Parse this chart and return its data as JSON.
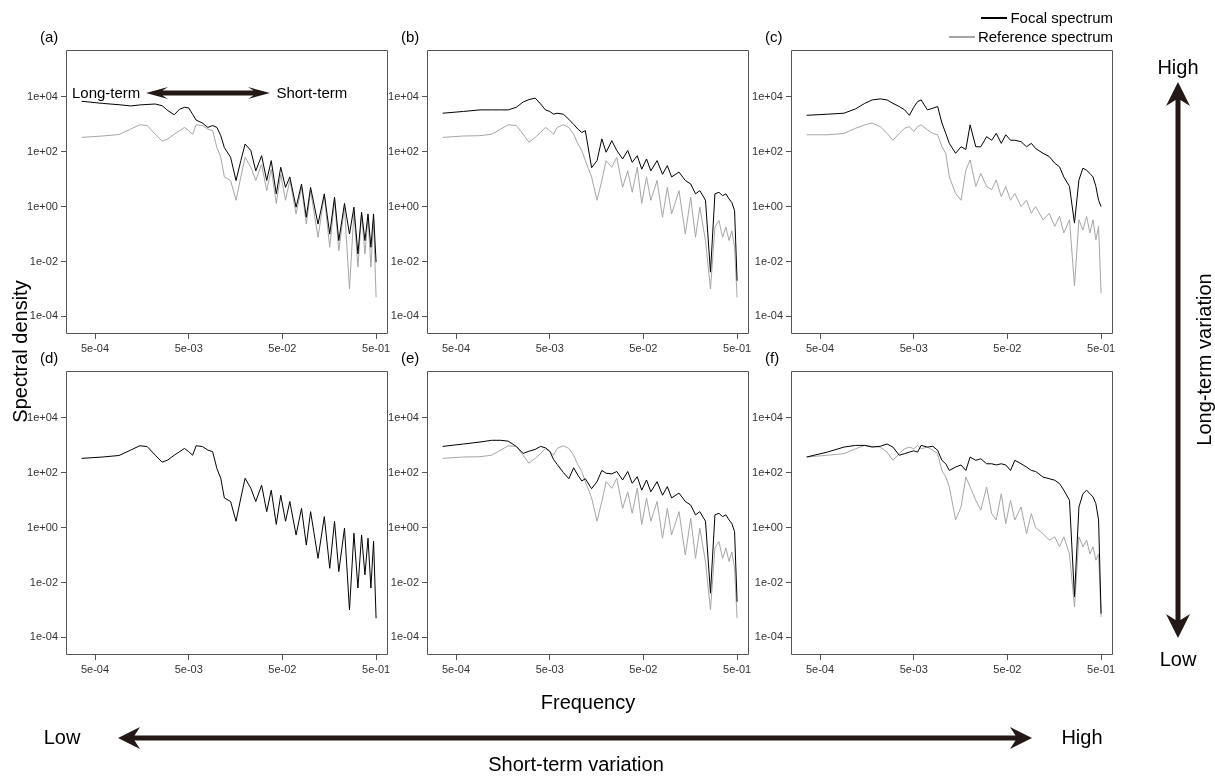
{
  "chart_data": [
    {
      "type": "line",
      "title": "(a)",
      "ylabel": "Spectral density",
      "annotations": [
        "Long-term",
        "Short-term"
      ],
      "log": "xy",
      "xlim": [
        0.000245,
        0.67
      ],
      "ylim": [
        2.3e-05,
        500000
      ],
      "xticks": [
        {
          "value": 0.0005,
          "label": "5e-04"
        },
        {
          "value": 0.005,
          "label": "5e-03"
        },
        {
          "value": 0.05,
          "label": "5e-02"
        },
        {
          "value": 0.5,
          "label": "5e-01"
        }
      ],
      "yticks": [
        {
          "value": 0.0001,
          "label": "1e-04"
        },
        {
          "value": 0.01,
          "label": "1e-02"
        },
        {
          "value": 1,
          "label": "1e+00"
        },
        {
          "value": 100,
          "label": "1e+02"
        },
        {
          "value": 10000,
          "label": "1e+04"
        }
      ],
      "x": [
        0.00036,
        0.0006,
        0.0009,
        0.0012,
        0.0015,
        0.0018,
        0.0022,
        0.0026,
        0.003,
        0.0035,
        0.004,
        0.0045,
        0.005,
        0.0055,
        0.006,
        0.007,
        0.008,
        0.009,
        0.01,
        0.011,
        0.012,
        0.014,
        0.016,
        0.018,
        0.02,
        0.023,
        0.026,
        0.03,
        0.034,
        0.038,
        0.043,
        0.048,
        0.054,
        0.06,
        0.07,
        0.08,
        0.09,
        0.1,
        0.12,
        0.14,
        0.16,
        0.18,
        0.2,
        0.23,
        0.26,
        0.29,
        0.32,
        0.35,
        0.38,
        0.41,
        0.44,
        0.47,
        0.5
      ],
      "series": [
        {
          "color": "#000000",
          "values": [
            6800,
            5700,
            5100,
            4600,
            5000,
            5200,
            5400,
            4700,
            3100,
            2200,
            3500,
            4100,
            3900,
            2300,
            1400,
            1100,
            760,
            890,
            760,
            380,
            140,
            62,
            8.9,
            47,
            190,
            110,
            20,
            71,
            8.9,
            47,
            2.9,
            27,
            5.0,
            12,
            0.95,
            6.6,
            0.41,
            5.0,
            0.23,
            2.9,
            0.1,
            2.2,
            0.058,
            1.3,
            0.1,
            0.95,
            0.019,
            0.62,
            0.058,
            0.54,
            0.033,
            0.54,
            0.0095
          ]
        },
        {
          "color": "#a6a6a6",
          "values": [
            330,
            370,
            420,
            660,
            950,
            890,
            430,
            240,
            290,
            430,
            580,
            760,
            580,
            430,
            950,
            890,
            660,
            580,
            140,
            62,
            12,
            8.9,
            1.7,
            12,
            62,
            27,
            8.9,
            35,
            3.8,
            23,
            1.3,
            15,
            1.7,
            8.9,
            0.54,
            5.0,
            0.23,
            3.8,
            0.076,
            2.5,
            0.033,
            1.7,
            0.025,
            0.95,
            0.001,
            0.62,
            0.0063,
            0.54,
            0.019,
            0.41,
            0.0063,
            0.32,
            0.0005
          ]
        }
      ]
    },
    {
      "type": "line",
      "title": "(b)",
      "log": "xy",
      "xlim": [
        0.000245,
        0.67
      ],
      "ylim": [
        2.3e-05,
        500000
      ],
      "xticks": [
        {
          "value": 0.0005,
          "label": "5e-04"
        },
        {
          "value": 0.005,
          "label": "5e-03"
        },
        {
          "value": 0.05,
          "label": "5e-02"
        },
        {
          "value": 0.5,
          "label": "5e-01"
        }
      ],
      "yticks": [
        {
          "value": 0.0001,
          "label": "1e-04"
        },
        {
          "value": 0.01,
          "label": "1e-02"
        },
        {
          "value": 1,
          "label": "1e+00"
        },
        {
          "value": 100,
          "label": "1e+02"
        },
        {
          "value": 10000,
          "label": "1e+04"
        }
      ],
      "x": [
        0.00036,
        0.0006,
        0.0009,
        0.0012,
        0.0015,
        0.0018,
        0.0022,
        0.0026,
        0.003,
        0.0035,
        0.004,
        0.0045,
        0.005,
        0.0055,
        0.006,
        0.007,
        0.008,
        0.009,
        0.01,
        0.011,
        0.012,
        0.014,
        0.016,
        0.018,
        0.02,
        0.023,
        0.026,
        0.03,
        0.034,
        0.038,
        0.043,
        0.048,
        0.054,
        0.06,
        0.07,
        0.08,
        0.09,
        0.1,
        0.12,
        0.14,
        0.16,
        0.18,
        0.2,
        0.23,
        0.26,
        0.29,
        0.32,
        0.35,
        0.38,
        0.41,
        0.44,
        0.47,
        0.5
      ],
      "series": [
        {
          "color": "#000000",
          "values": [
            2500,
            2900,
            3300,
            3300,
            3300,
            3300,
            4100,
            6400,
            7800,
            8900,
            5400,
            3300,
            2900,
            2300,
            2500,
            2300,
            1500,
            980,
            660,
            500,
            580,
            26,
            47,
            290,
            95,
            250,
            110,
            54,
            110,
            41,
            71,
            23,
            54,
            20,
            47,
            15,
            31,
            12,
            18,
            8.9,
            6.6,
            2.9,
            3.8,
            1.7,
            0.0041,
            2.9,
            3.3,
            2.5,
            2.9,
            1.9,
            1.4,
            0.71,
            0.002
          ]
        },
        {
          "color": "#a6a6a6",
          "values": [
            330,
            370,
            380,
            430,
            660,
            950,
            890,
            430,
            220,
            330,
            500,
            760,
            580,
            430,
            760,
            950,
            760,
            430,
            190,
            110,
            47,
            12,
            1.7,
            8.9,
            47,
            27,
            62,
            5.0,
            20,
            3.3,
            27,
            1.3,
            12,
            1.7,
            8.9,
            0.41,
            5.0,
            0.54,
            3.8,
            0.1,
            2.2,
            0.076,
            0.95,
            0.058,
            0.001,
            0.18,
            0.31,
            0.076,
            0.18,
            0.058,
            0.13,
            0.033,
            0.0005
          ]
        }
      ]
    },
    {
      "type": "line",
      "title": "(c)",
      "legend": "top right",
      "log": "xy",
      "xlim": [
        0.000245,
        0.67
      ],
      "ylim": [
        2.3e-05,
        500000
      ],
      "xticks": [
        {
          "value": 0.0005,
          "label": "5e-04"
        },
        {
          "value": 0.005,
          "label": "5e-03"
        },
        {
          "value": 0.05,
          "label": "5e-02"
        },
        {
          "value": 0.5,
          "label": "5e-01"
        }
      ],
      "yticks": [
        {
          "value": 0.0001,
          "label": "1e-04"
        },
        {
          "value": 0.01,
          "label": "1e-02"
        },
        {
          "value": 1,
          "label": "1e+00"
        },
        {
          "value": 100,
          "label": "1e+02"
        },
        {
          "value": 10000,
          "label": "1e+04"
        }
      ],
      "x": [
        0.00036,
        0.0006,
        0.0009,
        0.0012,
        0.0015,
        0.0018,
        0.0022,
        0.0026,
        0.003,
        0.0035,
        0.004,
        0.0045,
        0.005,
        0.0055,
        0.006,
        0.007,
        0.008,
        0.009,
        0.01,
        0.011,
        0.012,
        0.014,
        0.016,
        0.018,
        0.02,
        0.023,
        0.026,
        0.03,
        0.034,
        0.038,
        0.043,
        0.048,
        0.054,
        0.06,
        0.07,
        0.08,
        0.09,
        0.1,
        0.12,
        0.14,
        0.16,
        0.18,
        0.2,
        0.23,
        0.26,
        0.29,
        0.32,
        0.35,
        0.38,
        0.41,
        0.44,
        0.47,
        0.5
      ],
      "series": [
        {
          "name": "Focal spectrum",
          "color": "#000000",
          "values": [
            2100,
            2300,
            2500,
            3600,
            5700,
            7600,
            8300,
            7600,
            5700,
            4400,
            3300,
            2100,
            4100,
            6600,
            7600,
            3300,
            3800,
            4400,
            1100,
            460,
            200,
            87,
            150,
            120,
            940,
            150,
            150,
            350,
            260,
            460,
            200,
            410,
            260,
            260,
            230,
            150,
            200,
            130,
            87,
            66,
            38,
            28,
            12,
            5.4,
            0.25,
            9.3,
            25,
            21,
            16,
            12,
            5.4,
            1.7,
            1.0
          ]
        },
        {
          "name": "Reference spectrum",
          "color": "#a6a6a6",
          "values": [
            410,
            410,
            460,
            710,
            940,
            1100,
            810,
            460,
            260,
            460,
            710,
            810,
            540,
            810,
            940,
            620,
            460,
            410,
            150,
            87,
            12,
            3.0,
            1.7,
            21,
            50,
            5.4,
            16,
            5.4,
            4.1,
            9.3,
            2.3,
            5.4,
            1.7,
            3.0,
            1.0,
            1.7,
            0.57,
            1.0,
            0.33,
            0.57,
            0.19,
            0.44,
            0.11,
            0.33,
            0.0013,
            0.33,
            0.14,
            0.44,
            0.11,
            0.33,
            0.062,
            0.19,
            0.0007
          ]
        }
      ]
    },
    {
      "type": "line",
      "title": "(d)",
      "log": "xy",
      "xlim": [
        0.000245,
        0.67
      ],
      "ylim": [
        2.3e-05,
        500000
      ],
      "xticks": [
        {
          "value": 0.0005,
          "label": "5e-04"
        },
        {
          "value": 0.005,
          "label": "5e-03"
        },
        {
          "value": 0.05,
          "label": "5e-02"
        },
        {
          "value": 0.5,
          "label": "5e-01"
        }
      ],
      "yticks": [
        {
          "value": 0.0001,
          "label": "1e-04"
        },
        {
          "value": 0.01,
          "label": "1e-02"
        },
        {
          "value": 1,
          "label": "1e+00"
        },
        {
          "value": 100,
          "label": "1e+02"
        },
        {
          "value": 10000,
          "label": "1e+04"
        }
      ],
      "x": [
        0.00036,
        0.0006,
        0.0009,
        0.0012,
        0.0015,
        0.0018,
        0.0022,
        0.0026,
        0.003,
        0.0035,
        0.004,
        0.0045,
        0.005,
        0.0055,
        0.006,
        0.007,
        0.008,
        0.009,
        0.01,
        0.011,
        0.012,
        0.014,
        0.016,
        0.018,
        0.02,
        0.023,
        0.026,
        0.03,
        0.034,
        0.038,
        0.043,
        0.048,
        0.054,
        0.06,
        0.07,
        0.08,
        0.09,
        0.1,
        0.12,
        0.14,
        0.16,
        0.18,
        0.2,
        0.23,
        0.26,
        0.29,
        0.32,
        0.35,
        0.38,
        0.41,
        0.44,
        0.47,
        0.5
      ],
      "series": [
        {
          "color": "#000000",
          "values": [
            330,
            370,
            420,
            660,
            950,
            890,
            430,
            240,
            290,
            430,
            580,
            760,
            580,
            430,
            950,
            890,
            660,
            580,
            140,
            62,
            12,
            8.9,
            1.7,
            12,
            62,
            27,
            8.9,
            35,
            3.8,
            23,
            1.3,
            15,
            1.7,
            8.9,
            0.54,
            5.0,
            0.23,
            3.8,
            0.076,
            2.5,
            0.033,
            1.7,
            0.025,
            0.95,
            0.001,
            0.62,
            0.0063,
            0.54,
            0.019,
            0.41,
            0.0063,
            0.32,
            0.0005
          ]
        }
      ]
    },
    {
      "type": "line",
      "title": "(e)",
      "xlabel": "Frequency",
      "log": "xy",
      "xlim": [
        0.000245,
        0.67
      ],
      "ylim": [
        2.3e-05,
        500000
      ],
      "xticks": [
        {
          "value": 0.0005,
          "label": "5e-04"
        },
        {
          "value": 0.005,
          "label": "5e-03"
        },
        {
          "value": 0.05,
          "label": "5e-02"
        },
        {
          "value": 0.5,
          "label": "5e-01"
        }
      ],
      "yticks": [
        {
          "value": 0.0001,
          "label": "1e-04"
        },
        {
          "value": 0.01,
          "label": "1e-02"
        },
        {
          "value": 1,
          "label": "1e+00"
        },
        {
          "value": 100,
          "label": "1e+02"
        },
        {
          "value": 10000,
          "label": "1e+04"
        }
      ],
      "x": [
        0.00036,
        0.0006,
        0.0009,
        0.0012,
        0.0015,
        0.0018,
        0.0022,
        0.0026,
        0.003,
        0.0035,
        0.004,
        0.0045,
        0.005,
        0.0055,
        0.006,
        0.007,
        0.008,
        0.009,
        0.01,
        0.011,
        0.012,
        0.014,
        0.016,
        0.018,
        0.02,
        0.023,
        0.026,
        0.03,
        0.034,
        0.038,
        0.043,
        0.048,
        0.054,
        0.06,
        0.07,
        0.08,
        0.09,
        0.1,
        0.12,
        0.14,
        0.16,
        0.18,
        0.2,
        0.23,
        0.26,
        0.29,
        0.32,
        0.35,
        0.38,
        0.41,
        0.44,
        0.47,
        0.5
      ],
      "series": [
        {
          "color": "#000000",
          "values": [
            900,
            1100,
            1300,
            1500,
            1500,
            1400,
            900,
            500,
            600,
            700,
            900,
            800,
            600,
            300,
            200,
            100,
            60,
            150,
            80,
            50,
            60,
            26,
            47,
            120,
            95,
            90,
            110,
            54,
            110,
            41,
            71,
            23,
            54,
            20,
            47,
            15,
            31,
            12,
            18,
            8.9,
            6.6,
            2.9,
            3.8,
            1.7,
            0.0041,
            2.9,
            3.3,
            2.5,
            2.9,
            1.9,
            1.4,
            0.71,
            0.002
          ]
        },
        {
          "color": "#a6a6a6",
          "values": [
            330,
            370,
            380,
            430,
            660,
            950,
            890,
            430,
            220,
            330,
            500,
            760,
            580,
            430,
            760,
            950,
            760,
            430,
            190,
            110,
            47,
            12,
            1.7,
            8.9,
            47,
            27,
            62,
            5.0,
            20,
            3.3,
            27,
            1.3,
            12,
            1.7,
            8.9,
            0.41,
            5.0,
            0.54,
            3.8,
            0.1,
            2.2,
            0.076,
            0.95,
            0.058,
            0.001,
            0.18,
            0.31,
            0.076,
            0.18,
            0.058,
            0.13,
            0.033,
            0.0005
          ]
        }
      ]
    },
    {
      "type": "line",
      "title": "(f)",
      "log": "xy",
      "xlim": [
        0.000245,
        0.67
      ],
      "ylim": [
        2.3e-05,
        500000
      ],
      "xticks": [
        {
          "value": 0.0005,
          "label": "5e-04"
        },
        {
          "value": 0.005,
          "label": "5e-03"
        },
        {
          "value": 0.05,
          "label": "5e-02"
        },
        {
          "value": 0.5,
          "label": "5e-01"
        }
      ],
      "yticks": [
        {
          "value": 0.0001,
          "label": "1e-04"
        },
        {
          "value": 0.01,
          "label": "1e-02"
        },
        {
          "value": 1,
          "label": "1e+00"
        },
        {
          "value": 100,
          "label": "1e+02"
        },
        {
          "value": 10000,
          "label": "1e+04"
        }
      ],
      "x": [
        0.00036,
        0.0006,
        0.0009,
        0.0012,
        0.0015,
        0.0018,
        0.0022,
        0.0026,
        0.003,
        0.0035,
        0.004,
        0.0045,
        0.005,
        0.0055,
        0.006,
        0.007,
        0.008,
        0.009,
        0.01,
        0.011,
        0.012,
        0.014,
        0.016,
        0.018,
        0.02,
        0.023,
        0.026,
        0.03,
        0.034,
        0.038,
        0.043,
        0.048,
        0.054,
        0.06,
        0.07,
        0.08,
        0.09,
        0.1,
        0.12,
        0.14,
        0.16,
        0.18,
        0.2,
        0.23,
        0.26,
        0.29,
        0.32,
        0.35,
        0.38,
        0.41,
        0.44,
        0.47,
        0.5
      ],
      "series": [
        {
          "color": "#000000",
          "values": [
            370,
            560,
            850,
            980,
            980,
            850,
            910,
            1100,
            850,
            430,
            490,
            560,
            620,
            560,
            980,
            850,
            910,
            650,
            280,
            210,
            120,
            160,
            190,
            120,
            370,
            280,
            320,
            210,
            210,
            190,
            210,
            190,
            120,
            280,
            210,
            160,
            120,
            110,
            69,
            60,
            53,
            40,
            23,
            9.8,
            0.003,
            5.6,
            17,
            23,
            17,
            13,
            7.4,
            1.9,
            0.00074
          ]
        },
        {
          "color": "#a6a6a6",
          "values": [
            370,
            430,
            490,
            740,
            980,
            910,
            850,
            560,
            280,
            490,
            740,
            850,
            740,
            980,
            740,
            850,
            650,
            490,
            120,
            69,
            30,
            1.9,
            5.6,
            69,
            30,
            9.8,
            4.3,
            30,
            3.2,
            1.9,
            17,
            1.4,
            9.8,
            1.9,
            5.6,
            0.6,
            3.2,
            1.0,
            0.6,
            0.35,
            0.46,
            0.2,
            0.46,
            0.11,
            0.0013,
            0.46,
            0.2,
            0.35,
            0.11,
            0.2,
            0.065,
            0.11,
            0.00056
          ]
        }
      ]
    },
    {
      "type": "other",
      "annotations": [
        "High",
        "Low",
        "Long-term variation",
        "Low",
        "High",
        "Short-term variation"
      ]
    }
  ]
}
